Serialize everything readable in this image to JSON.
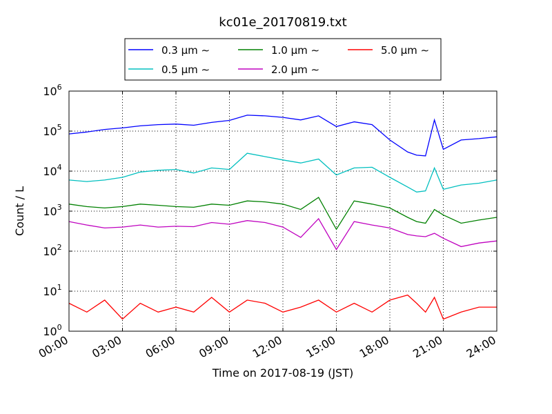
{
  "chart_data": {
    "type": "line",
    "title": "kc01e_20170819.txt",
    "xlabel": "Time on 2017-08-19 (JST)",
    "ylabel": "Count / L",
    "xlim": [
      0,
      24
    ],
    "ylim": [
      1,
      1000000
    ],
    "yscale": "log",
    "grid": true,
    "legend_position": "top-center",
    "x_ticks": [
      "00:00",
      "03:00",
      "06:00",
      "09:00",
      "12:00",
      "15:00",
      "18:00",
      "21:00",
      "24:00"
    ],
    "y_ticks": [
      {
        "base": "10",
        "exp": "0"
      },
      {
        "base": "10",
        "exp": "1"
      },
      {
        "base": "10",
        "exp": "2"
      },
      {
        "base": "10",
        "exp": "3"
      },
      {
        "base": "10",
        "exp": "4"
      },
      {
        "base": "10",
        "exp": "5"
      },
      {
        "base": "10",
        "exp": "6"
      }
    ],
    "x": [
      0,
      1,
      2,
      3,
      4,
      5,
      6,
      7,
      8,
      9,
      10,
      11,
      12,
      13,
      14,
      15,
      16,
      17,
      18,
      19,
      19.5,
      20,
      20.5,
      21,
      22,
      23,
      24
    ],
    "series": [
      {
        "name": "0.3 μm ∼",
        "color": "#0000ff",
        "values": [
          85000,
          95000,
          110000,
          120000,
          135000,
          145000,
          150000,
          140000,
          165000,
          185000,
          250000,
          240000,
          220000,
          190000,
          240000,
          130000,
          170000,
          145000,
          60000,
          30000,
          25000,
          24000,
          190000,
          35000,
          60000,
          65000,
          72000
        ]
      },
      {
        "name": "0.5 μm ∼",
        "color": "#00bfbf",
        "values": [
          6000,
          5500,
          6000,
          7000,
          9500,
          10500,
          11000,
          9000,
          12000,
          11000,
          28000,
          23000,
          19000,
          16000,
          20000,
          8000,
          12000,
          12500,
          7000,
          4000,
          3000,
          3200,
          12000,
          3500,
          4500,
          5000,
          6000
        ]
      },
      {
        "name": "1.0 μm ∼",
        "color": "#008000",
        "values": [
          1500,
          1300,
          1200,
          1300,
          1500,
          1400,
          1300,
          1250,
          1500,
          1400,
          1800,
          1700,
          1500,
          1100,
          2200,
          350,
          1800,
          1500,
          1200,
          700,
          550,
          500,
          1100,
          800,
          500,
          600,
          700
        ]
      },
      {
        "name": "2.0 μm ∼",
        "color": "#bf00bf",
        "values": [
          550,
          450,
          380,
          400,
          450,
          400,
          420,
          410,
          520,
          470,
          580,
          520,
          400,
          220,
          650,
          110,
          550,
          450,
          380,
          260,
          240,
          230,
          280,
          210,
          130,
          160,
          180
        ]
      },
      {
        "name": "5.0 μm ∼",
        "color": "#ff0000",
        "values": [
          5,
          3,
          6,
          2,
          5,
          3,
          4,
          3,
          7,
          3,
          6,
          5,
          3,
          4,
          6,
          3,
          5,
          3,
          6,
          8,
          5,
          3,
          7,
          2,
          3,
          4,
          4
        ]
      }
    ]
  }
}
